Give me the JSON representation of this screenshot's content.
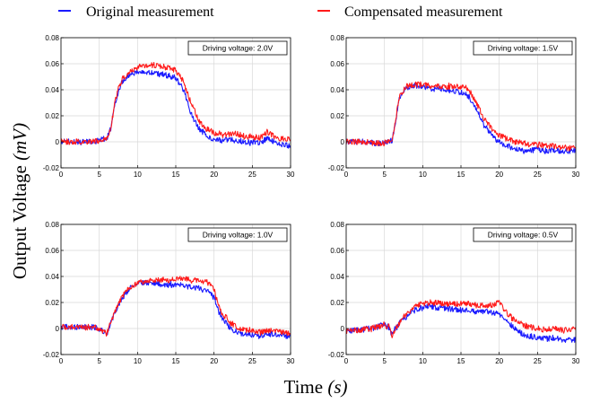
{
  "legend": {
    "entries": [
      {
        "label": "Original measurement",
        "color": "#1a1aff"
      },
      {
        "label": "Compensated measurement",
        "color": "#ff1a1a"
      }
    ]
  },
  "labels": {
    "ylabel_main": "Output Voltage ",
    "ylabel_unit": "(mV)",
    "xlabel_main": "Time ",
    "xlabel_unit": "(s)"
  },
  "chart_data": [
    {
      "type": "line",
      "annotation": "Driving voltage: 2.0V",
      "xlim": [
        0,
        30
      ],
      "ylim": [
        -0.02,
        0.08
      ],
      "xticks": [
        0,
        5,
        10,
        15,
        20,
        25,
        30
      ],
      "yticks": [
        -0.02,
        0,
        0.02,
        0.04,
        0.06,
        0.08
      ],
      "ytick_labels": [
        "-0.02",
        "0",
        "0.02",
        "0.04",
        "0.06",
        "0.08"
      ],
      "grid": true,
      "series": [
        {
          "name": "Original measurement",
          "color": "#1a1aff",
          "x": [
            0,
            2,
            4,
            5,
            6,
            6.5,
            7,
            7.5,
            8,
            9,
            10,
            11,
            12,
            13,
            14,
            15,
            16,
            17,
            18,
            19,
            20,
            21,
            22,
            23,
            24,
            25,
            26,
            27,
            28,
            29,
            30
          ],
          "y": [
            0,
            0,
            0,
            0.001,
            0.003,
            0.01,
            0.028,
            0.039,
            0.046,
            0.052,
            0.054,
            0.054,
            0.053,
            0.052,
            0.051,
            0.049,
            0.04,
            0.022,
            0.01,
            0.005,
            0.002,
            0.001,
            0.002,
            0.001,
            0,
            0,
            -0.001,
            0.003,
            0,
            -0.002,
            -0.003
          ]
        },
        {
          "name": "Compensated measurement",
          "color": "#ff1a1a",
          "x": [
            0,
            2,
            4,
            5,
            6,
            6.5,
            7,
            7.5,
            8,
            9,
            10,
            11,
            12,
            13,
            14,
            15,
            16,
            17,
            18,
            19,
            20,
            21,
            22,
            23,
            24,
            25,
            26,
            27,
            28,
            29,
            30
          ],
          "y": [
            0,
            0,
            0,
            0.001,
            0.003,
            0.01,
            0.029,
            0.041,
            0.048,
            0.054,
            0.057,
            0.059,
            0.059,
            0.058,
            0.057,
            0.055,
            0.046,
            0.03,
            0.016,
            0.01,
            0.007,
            0.005,
            0.006,
            0.006,
            0.004,
            0.004,
            0.003,
            0.008,
            0.003,
            0.002,
            0.002
          ]
        }
      ]
    },
    {
      "type": "line",
      "annotation": "Driving voltage: 1.5V",
      "xlim": [
        0,
        30
      ],
      "ylim": [
        -0.02,
        0.08
      ],
      "xticks": [
        0,
        5,
        10,
        15,
        20,
        25,
        30
      ],
      "yticks": [
        -0.02,
        0,
        0.02,
        0.04,
        0.06,
        0.08
      ],
      "ytick_labels": [
        "-0.02",
        "0",
        "0.02",
        "0.04",
        "0.06",
        "0.08"
      ],
      "grid": true,
      "series": [
        {
          "name": "Original measurement",
          "color": "#1a1aff",
          "x": [
            0,
            2,
            4,
            5,
            6,
            6.5,
            7,
            8,
            9,
            10,
            11,
            12,
            13,
            14,
            15,
            16,
            17,
            18,
            19,
            20,
            21,
            22,
            23,
            24,
            25,
            26,
            27,
            28,
            29,
            30
          ],
          "y": [
            0,
            0,
            -0.001,
            -0.001,
            0.001,
            0.018,
            0.035,
            0.042,
            0.043,
            0.042,
            0.041,
            0.041,
            0.04,
            0.039,
            0.038,
            0.035,
            0.025,
            0.013,
            0.005,
            0,
            -0.003,
            -0.005,
            -0.007,
            -0.007,
            -0.006,
            -0.007,
            -0.006,
            -0.007,
            -0.007,
            -0.006
          ]
        },
        {
          "name": "Compensated measurement",
          "color": "#ff1a1a",
          "x": [
            0,
            2,
            4,
            5,
            6,
            6.5,
            7,
            8,
            9,
            10,
            11,
            12,
            13,
            14,
            15,
            16,
            17,
            18,
            19,
            20,
            21,
            22,
            23,
            24,
            25,
            26,
            27,
            28,
            29,
            30
          ],
          "y": [
            0,
            0,
            -0.001,
            -0.001,
            0.001,
            0.018,
            0.036,
            0.043,
            0.044,
            0.044,
            0.043,
            0.043,
            0.042,
            0.043,
            0.042,
            0.041,
            0.03,
            0.018,
            0.01,
            0.005,
            0.002,
            0,
            -0.001,
            -0.002,
            -0.002,
            -0.003,
            -0.003,
            -0.004,
            -0.005,
            -0.004
          ]
        }
      ]
    },
    {
      "type": "line",
      "annotation": "Driving voltage: 1.0V",
      "xlim": [
        0,
        30
      ],
      "ylim": [
        -0.02,
        0.08
      ],
      "xticks": [
        0,
        5,
        10,
        15,
        20,
        25,
        30
      ],
      "yticks": [
        -0.02,
        0,
        0.02,
        0.04,
        0.06,
        0.08
      ],
      "ytick_labels": [
        "-0.02",
        "0",
        "0.02",
        "0.04",
        "0.06",
        "0.08"
      ],
      "grid": true,
      "series": [
        {
          "name": "Original measurement",
          "color": "#1a1aff",
          "x": [
            0,
            2,
            4,
            5,
            5.5,
            6,
            6.5,
            7,
            8,
            9,
            10,
            11,
            12,
            13,
            14,
            15,
            16,
            17,
            18,
            19,
            20,
            20.5,
            21,
            22,
            23,
            24,
            25,
            26,
            27,
            28,
            29,
            30
          ],
          "y": [
            0.001,
            0.001,
            0.001,
            0,
            -0.002,
            -0.004,
            0.005,
            0.012,
            0.023,
            0.031,
            0.034,
            0.035,
            0.035,
            0.034,
            0.033,
            0.034,
            0.033,
            0.032,
            0.031,
            0.029,
            0.024,
            0.015,
            0.008,
            0.001,
            -0.003,
            -0.005,
            -0.005,
            -0.006,
            -0.005,
            -0.004,
            -0.006,
            -0.006
          ]
        },
        {
          "name": "Compensated measurement",
          "color": "#ff1a1a",
          "x": [
            0,
            2,
            4,
            5,
            5.5,
            6,
            6.5,
            7,
            8,
            9,
            10,
            11,
            12,
            13,
            14,
            15,
            16,
            17,
            18,
            19,
            20,
            20.5,
            21,
            22,
            23,
            24,
            25,
            26,
            27,
            28,
            29,
            30
          ],
          "y": [
            0.001,
            0.001,
            0.001,
            0,
            -0.002,
            -0.004,
            0.005,
            0.012,
            0.024,
            0.032,
            0.035,
            0.036,
            0.037,
            0.037,
            0.037,
            0.038,
            0.038,
            0.037,
            0.037,
            0.036,
            0.03,
            0.02,
            0.012,
            0.005,
            0.001,
            -0.001,
            -0.001,
            -0.003,
            -0.002,
            -0.001,
            -0.003,
            -0.004
          ]
        }
      ]
    },
    {
      "type": "line",
      "annotation": "Driving voltage: 0.5V",
      "xlim": [
        0,
        30
      ],
      "ylim": [
        -0.02,
        0.08
      ],
      "xticks": [
        0,
        5,
        10,
        15,
        20,
        25,
        30
      ],
      "yticks": [
        -0.02,
        0,
        0.02,
        0.04,
        0.06,
        0.08
      ],
      "ytick_labels": [
        "-0.02",
        "0",
        "0.02",
        "0.04",
        "0.06",
        "0.08"
      ],
      "grid": true,
      "series": [
        {
          "name": "Original measurement",
          "color": "#1a1aff",
          "x": [
            0,
            2,
            4,
            5,
            5.5,
            6,
            6.5,
            7,
            8,
            9,
            10,
            11,
            12,
            13,
            14,
            15,
            16,
            17,
            18,
            19,
            20,
            21,
            22,
            23,
            24,
            25,
            26,
            27,
            28,
            29,
            30
          ],
          "y": [
            -0.002,
            -0.001,
            0.001,
            0.003,
            0.001,
            -0.005,
            0,
            0.004,
            0.01,
            0.014,
            0.016,
            0.017,
            0.016,
            0.015,
            0.015,
            0.014,
            0.014,
            0.013,
            0.013,
            0.012,
            0.011,
            0.006,
            0,
            -0.004,
            -0.006,
            -0.007,
            -0.008,
            -0.007,
            -0.008,
            -0.009,
            -0.009
          ]
        },
        {
          "name": "Compensated measurement",
          "color": "#ff1a1a",
          "x": [
            0,
            2,
            4,
            5,
            5.5,
            6,
            6.5,
            7,
            8,
            9,
            10,
            11,
            12,
            13,
            14,
            15,
            16,
            17,
            18,
            19,
            20,
            21,
            22,
            23,
            24,
            25,
            26,
            27,
            28,
            29,
            30
          ],
          "y": [
            -0.002,
            -0.001,
            0.001,
            0.003,
            0.001,
            -0.005,
            0,
            0.005,
            0.012,
            0.017,
            0.019,
            0.02,
            0.02,
            0.019,
            0.019,
            0.019,
            0.019,
            0.018,
            0.018,
            0.018,
            0.02,
            0.012,
            0.006,
            0.003,
            0.001,
            0,
            -0.001,
            0,
            -0.001,
            -0.001,
            0
          ]
        }
      ]
    }
  ]
}
